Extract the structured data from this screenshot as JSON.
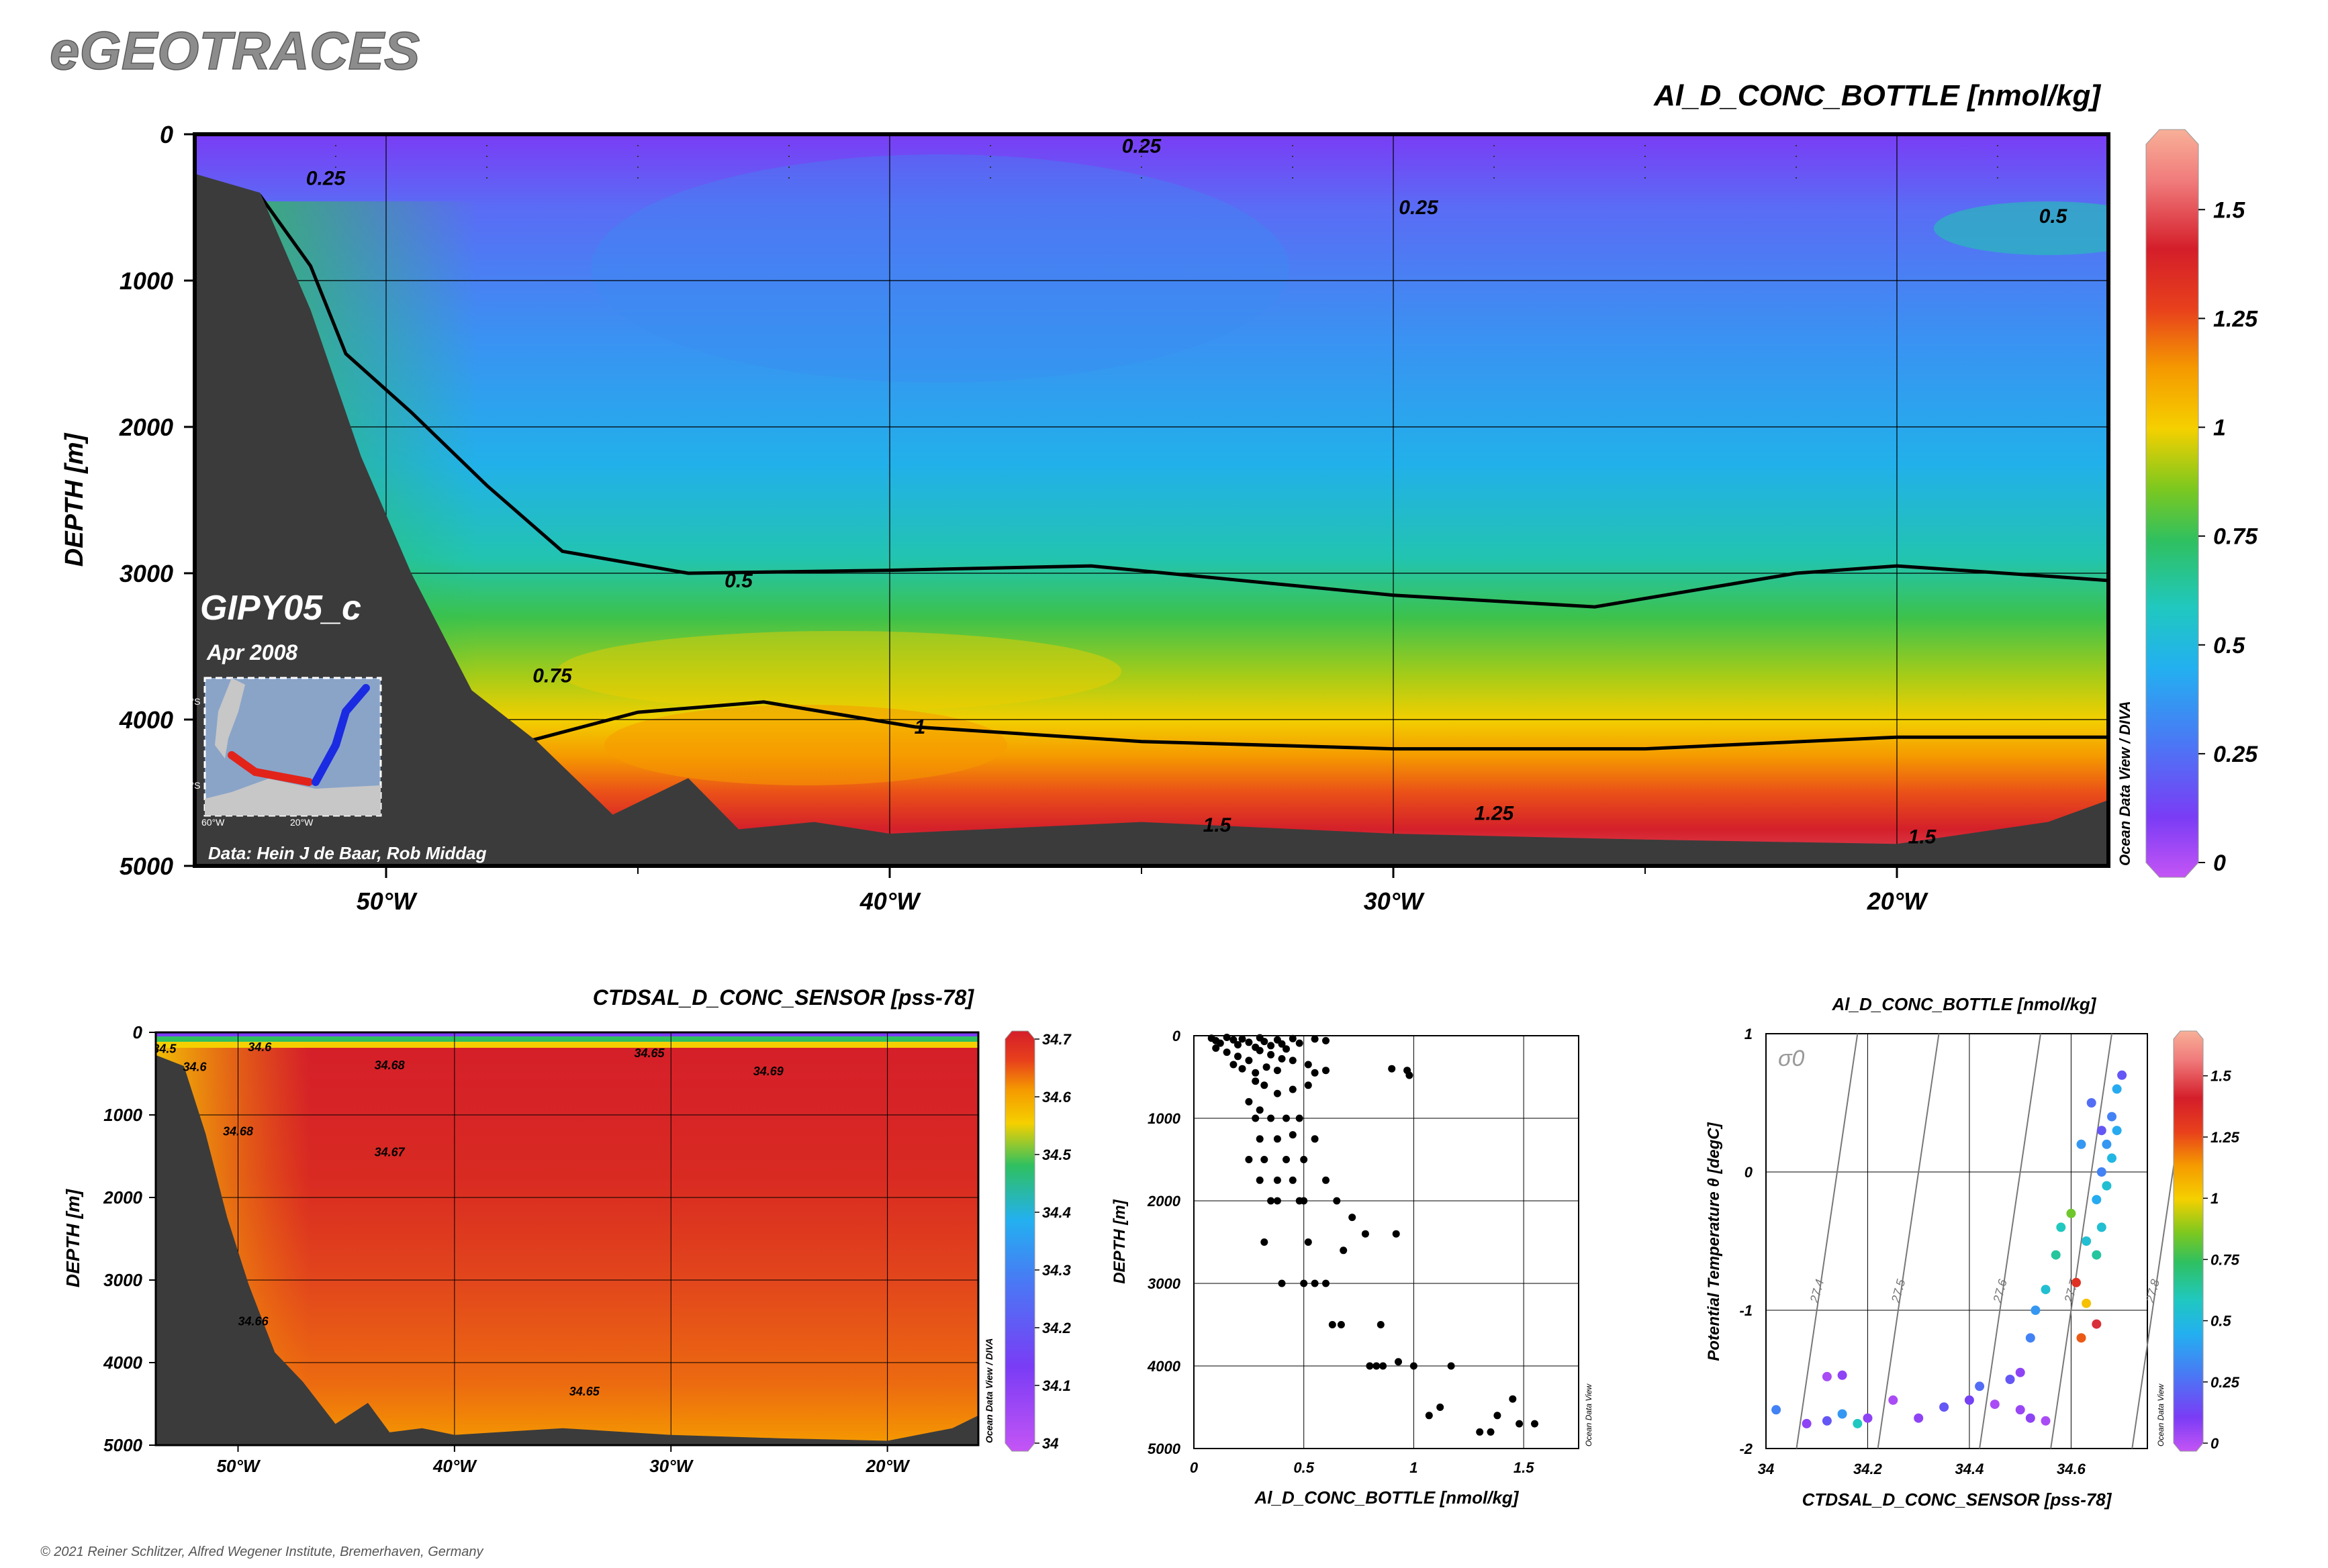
{
  "header": {
    "logo": "eGEOTRACES",
    "copyright": "© 2021 Reiner Schlitzer, Alfred Wegener Institute, Bremerhaven, Germany"
  },
  "main_section": {
    "title": "Al_D_CONC_BOTTLE [nmol/kg]",
    "cruise": "GIPY05_c",
    "date": "Apr 2008",
    "credit": "Data: Hein J de Baar, Rob Middag",
    "watermark": "Ocean Data View / DIVA",
    "inset_tick_labels": [
      "40°S",
      "70°S",
      "60°W",
      "20°W"
    ]
  },
  "salinity_section": {
    "title": "CTDSAL_D_CONC_SENSOR [pss-78]",
    "watermark": "Ocean Data View / DIVA"
  },
  "scatter_profile": {
    "watermark": "Ocean Data View"
  },
  "ts_plot": {
    "title": "Al_D_CONC_BOTTLE [nmol/kg]",
    "sigma_label": "σ0",
    "watermark": "Ocean Data View"
  },
  "colors": {
    "land": "#3b3b3b",
    "frame": "#000000",
    "al_scale": [
      "#c455f5",
      "#7a3cf5",
      "#4a78f5",
      "#23b0f0",
      "#20c8c0",
      "#2fc060",
      "#7dc81f",
      "#f5d000",
      "#f59a00",
      "#e8401c",
      "#d41e2a",
      "#f07a7a",
      "#f8b098"
    ],
    "sal_scale": [
      "#c455f5",
      "#7a3cf5",
      "#4a78f5",
      "#23b0f0",
      "#2fc060",
      "#f5d000",
      "#f59a00",
      "#e8401c",
      "#d41e2a"
    ]
  },
  "chart_data": [
    {
      "id": "al_section",
      "type": "heatmap",
      "title": "Al_D_CONC_BOTTLE [nmol/kg]",
      "xlabel": "",
      "ylabel": "DEPTH [m]",
      "x_ticks": [
        "50°W",
        "40°W",
        "30°W",
        "20°W"
      ],
      "x_tick_values": [
        -50,
        -40,
        -30,
        -20
      ],
      "xlim": [
        -53.8,
        -15.8
      ],
      "y_ticks": [
        "0",
        "1000",
        "2000",
        "3000",
        "4000",
        "5000"
      ],
      "y_tick_values": [
        0,
        1000,
        2000,
        3000,
        4000,
        5000
      ],
      "ylim": [
        5000,
        0
      ],
      "colorbar": {
        "ticks": [
          "0",
          "0.25",
          "0.5",
          "0.75",
          "1",
          "1.25",
          "1.5"
        ],
        "tick_values": [
          0,
          0.25,
          0.5,
          0.75,
          1,
          1.25,
          1.5
        ],
        "range": [
          0,
          1.65
        ]
      },
      "contour_labels": [
        {
          "text": "0.25",
          "x": -51.2,
          "y": 300
        },
        {
          "text": "0.25",
          "x": -35.0,
          "y": 80
        },
        {
          "text": "0.25",
          "x": -29.5,
          "y": 500
        },
        {
          "text": "0.5",
          "x": -16.9,
          "y": 560
        },
        {
          "text": "0.5",
          "x": -43.0,
          "y": 3050
        },
        {
          "text": "0.75",
          "x": -46.7,
          "y": 3700
        },
        {
          "text": "1",
          "x": -39.4,
          "y": 4050
        },
        {
          "text": "1.25",
          "x": -28.0,
          "y": 4640
        },
        {
          "text": "1.5",
          "x": -33.5,
          "y": 4720
        },
        {
          "text": "1.5",
          "x": -19.5,
          "y": 4800
        }
      ],
      "isolines": {
        "0.5": [
          [
            -54.0,
            300
          ],
          [
            -52.5,
            420
          ],
          [
            -51.5,
            900
          ],
          [
            -50.8,
            1500
          ],
          [
            -49.5,
            1900
          ],
          [
            -48.0,
            2400
          ],
          [
            -46.5,
            2850
          ],
          [
            -44.0,
            3000
          ],
          [
            -40.0,
            2980
          ],
          [
            -36.0,
            2950
          ],
          [
            -30.0,
            3150
          ],
          [
            -26.0,
            3230
          ],
          [
            -22.0,
            3000
          ],
          [
            -20.0,
            2950
          ],
          [
            -17.0,
            3020
          ],
          [
            -15.8,
            3050
          ]
        ],
        "1": [
          [
            -47.2,
            4150
          ],
          [
            -45.0,
            3950
          ],
          [
            -42.5,
            3880
          ],
          [
            -39.5,
            4050
          ],
          [
            -35.0,
            4150
          ],
          [
            -30.0,
            4200
          ],
          [
            -25.0,
            4200
          ],
          [
            -20.0,
            4120
          ],
          [
            -15.8,
            4120
          ]
        ]
      },
      "bottom_depth_profile": [
        [
          -54.0,
          250
        ],
        [
          -52.5,
          400
        ],
        [
          -51.5,
          1200
        ],
        [
          -50.5,
          2200
        ],
        [
          -49.5,
          3000
        ],
        [
          -48.3,
          3800
        ],
        [
          -47.0,
          4150
        ],
        [
          -45.5,
          4650
        ],
        [
          -44.0,
          4400
        ],
        [
          -43.0,
          4750
        ],
        [
          -41.5,
          4700
        ],
        [
          -40.0,
          4780
        ],
        [
          -35.0,
          4700
        ],
        [
          -30.0,
          4780
        ],
        [
          -25.0,
          4820
        ],
        [
          -20.0,
          4850
        ],
        [
          -17.0,
          4700
        ],
        [
          -15.8,
          4550
        ]
      ]
    },
    {
      "id": "sal_section",
      "type": "heatmap",
      "title": "CTDSAL_D_CONC_SENSOR [pss-78]",
      "ylabel": "DEPTH [m]",
      "x_ticks": [
        "50°W",
        "40°W",
        "30°W",
        "20°W"
      ],
      "x_tick_values": [
        -50,
        -40,
        -30,
        -20
      ],
      "xlim": [
        -53.8,
        -15.8
      ],
      "y_ticks": [
        "0",
        "1000",
        "2000",
        "3000",
        "4000",
        "5000"
      ],
      "y_tick_values": [
        0,
        1000,
        2000,
        3000,
        4000,
        5000
      ],
      "ylim": [
        5000,
        0
      ],
      "colorbar": {
        "ticks": [
          "34",
          "34.1",
          "34.2",
          "34.3",
          "34.4",
          "34.5",
          "34.6",
          "34.7"
        ],
        "tick_values": [
          34,
          34.1,
          34.2,
          34.3,
          34.4,
          34.5,
          34.6,
          34.7
        ],
        "range": [
          34,
          34.7
        ]
      },
      "contour_labels": [
        {
          "text": "34.5",
          "x": -53.4,
          "y": 200
        },
        {
          "text": "34.6",
          "x": -49.0,
          "y": 180
        },
        {
          "text": "34.6",
          "x": -52.0,
          "y": 420
        },
        {
          "text": "34.65",
          "x": -31.0,
          "y": 250
        },
        {
          "text": "34.68",
          "x": -43.0,
          "y": 400
        },
        {
          "text": "34.69",
          "x": -25.5,
          "y": 470
        },
        {
          "text": "34.68",
          "x": -50.0,
          "y": 1200
        },
        {
          "text": "34.67",
          "x": -43.0,
          "y": 1450
        },
        {
          "text": "34.66",
          "x": -49.3,
          "y": 3500
        },
        {
          "text": "34.65",
          "x": -34.0,
          "y": 4350
        }
      ]
    },
    {
      "id": "al_profile",
      "type": "scatter",
      "xlabel": "Al_D_CONC_BOTTLE [nmol/kg]",
      "ylabel": "DEPTH [m]",
      "x_ticks": [
        "0",
        "0.5",
        "1",
        "1.5"
      ],
      "x_tick_values": [
        0,
        0.5,
        1,
        1.5
      ],
      "xlim": [
        0,
        1.75
      ],
      "y_ticks": [
        "0",
        "1000",
        "2000",
        "3000",
        "4000",
        "5000"
      ],
      "y_tick_values": [
        0,
        1000,
        2000,
        3000,
        4000,
        5000
      ],
      "ylim": [
        5000,
        0
      ],
      "points": [
        [
          0.08,
          30
        ],
        [
          0.1,
          60
        ],
        [
          0.12,
          90
        ],
        [
          0.15,
          20
        ],
        [
          0.18,
          50
        ],
        [
          0.2,
          110
        ],
        [
          0.22,
          40
        ],
        [
          0.25,
          80
        ],
        [
          0.28,
          140
        ],
        [
          0.3,
          25
        ],
        [
          0.32,
          70
        ],
        [
          0.35,
          120
        ],
        [
          0.38,
          50
        ],
        [
          0.4,
          100
        ],
        [
          0.42,
          160
        ],
        [
          0.45,
          35
        ],
        [
          0.48,
          90
        ],
        [
          0.55,
          40
        ],
        [
          0.6,
          60
        ],
        [
          0.1,
          150
        ],
        [
          0.15,
          200
        ],
        [
          0.2,
          250
        ],
        [
          0.25,
          300
        ],
        [
          0.3,
          180
        ],
        [
          0.35,
          230
        ],
        [
          0.4,
          280
        ],
        [
          0.18,
          350
        ],
        [
          0.22,
          400
        ],
        [
          0.28,
          450
        ],
        [
          0.33,
          380
        ],
        [
          0.38,
          420
        ],
        [
          0.45,
          300
        ],
        [
          0.52,
          350
        ],
        [
          0.55,
          450
        ],
        [
          0.6,
          420
        ],
        [
          0.9,
          400
        ],
        [
          0.97,
          420
        ],
        [
          0.98,
          480
        ],
        [
          0.28,
          550
        ],
        [
          0.32,
          600
        ],
        [
          0.38,
          700
        ],
        [
          0.45,
          650
        ],
        [
          0.52,
          600
        ],
        [
          0.25,
          800
        ],
        [
          0.3,
          900
        ],
        [
          0.28,
          1000
        ],
        [
          0.35,
          1000
        ],
        [
          0.42,
          1000
        ],
        [
          0.48,
          1000
        ],
        [
          0.3,
          1250
        ],
        [
          0.38,
          1250
        ],
        [
          0.45,
          1200
        ],
        [
          0.55,
          1250
        ],
        [
          0.25,
          1500
        ],
        [
          0.32,
          1500
        ],
        [
          0.42,
          1500
        ],
        [
          0.5,
          1500
        ],
        [
          0.3,
          1750
        ],
        [
          0.38,
          1750
        ],
        [
          0.45,
          1750
        ],
        [
          0.6,
          1750
        ],
        [
          0.35,
          2000
        ],
        [
          0.38,
          2000
        ],
        [
          0.48,
          2000
        ],
        [
          0.5,
          2000
        ],
        [
          0.65,
          2000
        ],
        [
          0.72,
          2200
        ],
        [
          0.78,
          2400
        ],
        [
          0.92,
          2400
        ],
        [
          0.68,
          2600
        ],
        [
          0.32,
          2500
        ],
        [
          0.52,
          2500
        ],
        [
          0.4,
          3000
        ],
        [
          0.5,
          3000
        ],
        [
          0.55,
          3000
        ],
        [
          0.6,
          3000
        ],
        [
          0.63,
          3500
        ],
        [
          0.67,
          3500
        ],
        [
          0.85,
          3500
        ],
        [
          0.8,
          4000
        ],
        [
          0.83,
          4000
        ],
        [
          0.86,
          4000
        ],
        [
          0.93,
          3950
        ],
        [
          1.0,
          4000
        ],
        [
          1.17,
          4000
        ],
        [
          1.07,
          4600
        ],
        [
          1.12,
          4500
        ],
        [
          1.3,
          4800
        ],
        [
          1.35,
          4800
        ],
        [
          1.38,
          4600
        ],
        [
          1.45,
          4400
        ],
        [
          1.48,
          4700
        ],
        [
          1.55,
          4700
        ]
      ]
    },
    {
      "id": "ts_diagram",
      "type": "scatter",
      "title": "Al_D_CONC_BOTTLE [nmol/kg]",
      "xlabel": "CTDSAL_D_CONC_SENSOR [pss-78]",
      "ylabel": "Potential Temperature θ [degC]",
      "x_ticks": [
        "34",
        "34.2",
        "34.4",
        "34.6"
      ],
      "x_tick_values": [
        34,
        34.2,
        34.4,
        34.6
      ],
      "xlim": [
        34,
        34.75
      ],
      "y_ticks": [
        "1",
        "0",
        "-1",
        "-2"
      ],
      "y_tick_values": [
        1,
        0,
        -1,
        -2
      ],
      "ylim": [
        -2,
        1
      ],
      "isopycnal_labels": [
        "27.4",
        "27.5",
        "27.6",
        "27.7",
        "27.8"
      ],
      "colorbar": {
        "ticks": [
          "0",
          "0.25",
          "0.5",
          "0.75",
          "1",
          "1.25",
          "1.5"
        ],
        "tick_values": [
          0,
          0.25,
          0.5,
          0.75,
          1,
          1.25,
          1.5
        ],
        "range": [
          0,
          1.65
        ]
      },
      "points": [
        [
          34.02,
          -1.72,
          0.3
        ],
        [
          34.08,
          -1.82,
          0.1
        ],
        [
          34.12,
          -1.8,
          0.2
        ],
        [
          34.15,
          -1.75,
          0.35
        ],
        [
          34.18,
          -1.82,
          0.55
        ],
        [
          34.2,
          -1.78,
          0.1
        ],
        [
          34.25,
          -1.65,
          0.05
        ],
        [
          34.12,
          -1.48,
          0.05
        ],
        [
          34.15,
          -1.47,
          0.1
        ],
        [
          34.3,
          -1.78,
          0.1
        ],
        [
          34.35,
          -1.7,
          0.2
        ],
        [
          34.4,
          -1.65,
          0.15
        ],
        [
          34.45,
          -1.68,
          0.05
        ],
        [
          34.5,
          -1.72,
          0.08
        ],
        [
          34.52,
          -1.78,
          0.1
        ],
        [
          34.55,
          -1.8,
          0.05
        ],
        [
          34.42,
          -1.55,
          0.25
        ],
        [
          34.48,
          -1.5,
          0.2
        ],
        [
          34.5,
          -1.45,
          0.1
        ],
        [
          34.52,
          -1.2,
          0.3
        ],
        [
          34.53,
          -1.0,
          0.35
        ],
        [
          34.55,
          -0.85,
          0.5
        ],
        [
          34.57,
          -0.6,
          0.6
        ],
        [
          34.58,
          -0.4,
          0.55
        ],
        [
          34.6,
          -0.3,
          0.8
        ],
        [
          34.61,
          -0.8,
          1.3
        ],
        [
          34.62,
          -1.2,
          1.2
        ],
        [
          34.63,
          -0.95,
          1.0
        ],
        [
          34.65,
          -1.1,
          1.4
        ],
        [
          34.63,
          -0.5,
          0.5
        ],
        [
          34.65,
          -0.2,
          0.4
        ],
        [
          34.66,
          0.0,
          0.3
        ],
        [
          34.67,
          0.2,
          0.35
        ],
        [
          34.68,
          0.4,
          0.3
        ],
        [
          34.69,
          0.6,
          0.4
        ],
        [
          34.7,
          0.7,
          0.2
        ],
        [
          34.65,
          -0.6,
          0.6
        ],
        [
          34.66,
          -0.4,
          0.5
        ],
        [
          34.67,
          -0.1,
          0.5
        ],
        [
          34.68,
          0.1,
          0.45
        ],
        [
          34.69,
          0.3,
          0.4
        ],
        [
          34.62,
          0.2,
          0.35
        ],
        [
          34.64,
          0.5,
          0.25
        ],
        [
          34.66,
          0.3,
          0.2
        ]
      ]
    }
  ]
}
